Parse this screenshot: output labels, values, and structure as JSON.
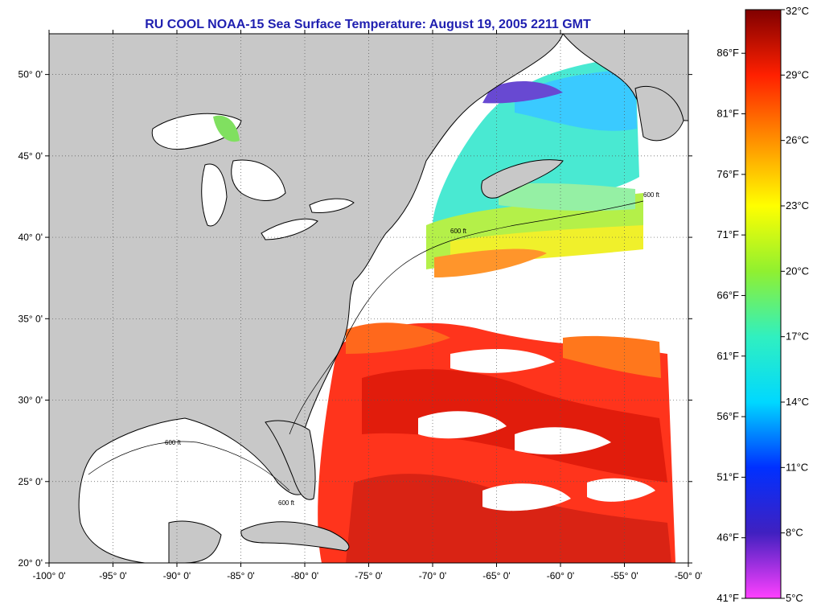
{
  "title": "RU COOL  NOAA-15  Sea Surface Temperature:  August 19, 2005 2211 GMT",
  "map": {
    "lon_range": [
      -100,
      -50
    ],
    "lat_range": [
      20,
      52.5
    ],
    "lon_ticks": [
      {
        "value": -100,
        "label": "-100° 0'"
      },
      {
        "value": -95,
        "label": "-95° 0'"
      },
      {
        "value": -90,
        "label": "-90° 0'"
      },
      {
        "value": -85,
        "label": "-85° 0'"
      },
      {
        "value": -80,
        "label": "-80° 0'"
      },
      {
        "value": -75,
        "label": "-75° 0'"
      },
      {
        "value": -70,
        "label": "-70° 0'"
      },
      {
        "value": -65,
        "label": "-65° 0'"
      },
      {
        "value": -60,
        "label": "-60° 0'"
      },
      {
        "value": -55,
        "label": "-55° 0'"
      },
      {
        "value": -50,
        "label": "-50° 0'"
      }
    ],
    "lat_ticks": [
      {
        "value": 20,
        "label": "20° 0'"
      },
      {
        "value": 25,
        "label": "25° 0'"
      },
      {
        "value": 30,
        "label": "30° 0'"
      },
      {
        "value": 35,
        "label": "35° 0'"
      },
      {
        "value": 40,
        "label": "40° 0'"
      },
      {
        "value": 45,
        "label": "45° 0'"
      },
      {
        "value": 50,
        "label": "50° 0'"
      }
    ],
    "grid": true,
    "colors": {
      "land": "#c8c8c8",
      "cloud": "#ffffff",
      "coast": "#000000"
    },
    "isobath_label": "600 ft"
  },
  "colorbar": {
    "range_c": [
      5,
      32
    ],
    "celsius_labels": [
      {
        "value": 32,
        "label": "32°C"
      },
      {
        "value": 29,
        "label": "29°C"
      },
      {
        "value": 26,
        "label": "26°C"
      },
      {
        "value": 23,
        "label": "23°C"
      },
      {
        "value": 20,
        "label": "20°C"
      },
      {
        "value": 17,
        "label": "17°C"
      },
      {
        "value": 14,
        "label": "14°C"
      },
      {
        "value": 11,
        "label": "11°C"
      },
      {
        "value": 8,
        "label": "8°C"
      },
      {
        "value": 5,
        "label": "5°C"
      }
    ],
    "fahrenheit_labels": [
      {
        "value": 86,
        "label": "86°F"
      },
      {
        "value": 81,
        "label": "81°F"
      },
      {
        "value": 76,
        "label": "76°F"
      },
      {
        "value": 71,
        "label": "71°F"
      },
      {
        "value": 66,
        "label": "66°F"
      },
      {
        "value": 61,
        "label": "61°F"
      },
      {
        "value": 56,
        "label": "56°F"
      },
      {
        "value": 51,
        "label": "51°F"
      },
      {
        "value": 46,
        "label": "46°F"
      },
      {
        "value": 41,
        "label": "41°F"
      }
    ],
    "color_stops": [
      {
        "c": 5,
        "color": "#ff40ff"
      },
      {
        "c": 8,
        "color": "#4020c0"
      },
      {
        "c": 11,
        "color": "#0030ff"
      },
      {
        "c": 14,
        "color": "#00d8ff"
      },
      {
        "c": 17,
        "color": "#30f0c0"
      },
      {
        "c": 20,
        "color": "#90f030"
      },
      {
        "c": 23,
        "color": "#ffff00"
      },
      {
        "c": 26,
        "color": "#ff9000"
      },
      {
        "c": 29,
        "color": "#ff2000"
      },
      {
        "c": 32,
        "color": "#800000"
      }
    ]
  }
}
